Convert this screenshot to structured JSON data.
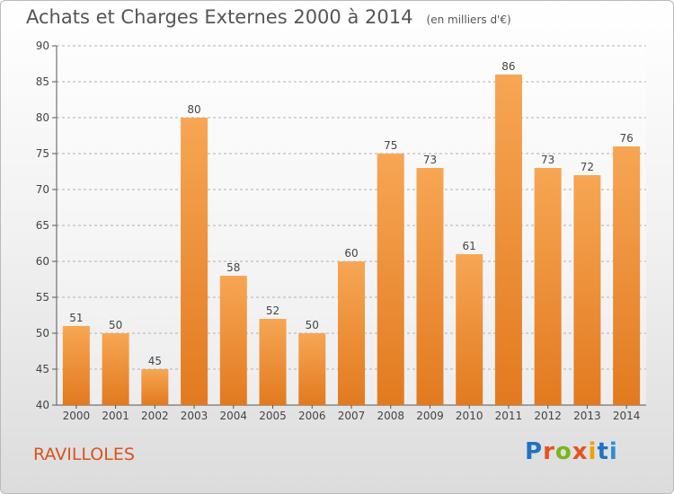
{
  "title": "Achats et Charges Externes 2000 à 2014",
  "unit": "(en milliers d'€)",
  "commune": "RAVILLOLES",
  "logo": {
    "text": "Proxiti",
    "colors": [
      "#1e73c4",
      "#e6531d",
      "#7ab51d",
      "#e6531d",
      "#f0a000",
      "#1e73c4",
      "#2a8fd8"
    ]
  },
  "colors": {
    "bar_top": "#f7a654",
    "bar_bottom": "#e27a1f",
    "commune": "#d9541e",
    "grid": "#b0b0b0"
  },
  "chart_data": {
    "type": "bar",
    "title": "Achats et Charges Externes 2000 à 2014",
    "subtitle": "(en milliers d'€)",
    "categories": [
      "2000",
      "2001",
      "2002",
      "2003",
      "2004",
      "2005",
      "2006",
      "2007",
      "2008",
      "2009",
      "2010",
      "2011",
      "2012",
      "2013",
      "2014"
    ],
    "values": [
      51,
      50,
      45,
      80,
      58,
      52,
      50,
      60,
      75,
      73,
      61,
      86,
      73,
      72,
      76
    ],
    "ylim": [
      40,
      90
    ],
    "yticks": [
      40,
      45,
      50,
      55,
      60,
      65,
      70,
      75,
      80,
      85,
      90
    ],
    "xlabel": "",
    "ylabel": "",
    "grid": "horizontal-dashed"
  }
}
